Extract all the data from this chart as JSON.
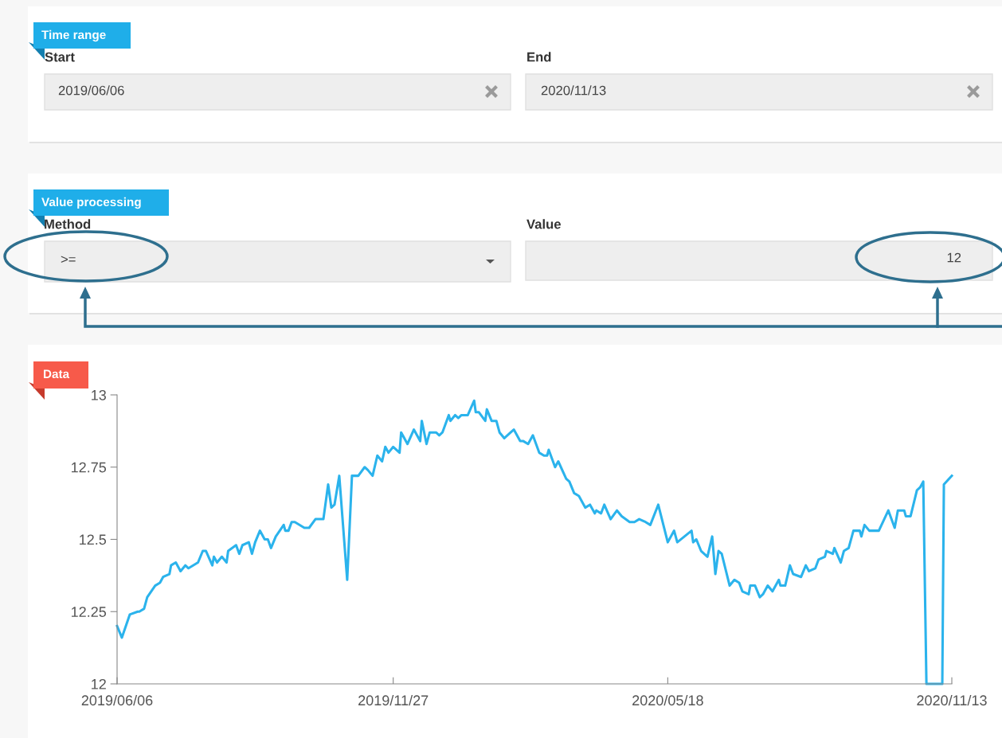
{
  "chart_data": {
    "type": "line",
    "title": "Data",
    "annotations": [
      "Time range",
      "Start",
      "2019/06/06",
      "End",
      "2020/11/13",
      "Value processing",
      "Method",
      ">=",
      "Value",
      "12"
    ],
    "x": [
      "2019-06-06",
      "2019-06-09",
      "2019-06-14",
      "2019-06-19",
      "2019-06-20",
      "2019-06-23",
      "2019-06-25",
      "2019-06-30",
      "2019-07-03",
      "2019-07-05",
      "2019-07-09",
      "2019-07-10",
      "2019-07-13",
      "2019-07-16",
      "2019-07-19",
      "2019-07-21",
      "2019-07-27",
      "2019-07-30",
      "2019-08-01",
      "2019-08-05",
      "2019-08-06",
      "2019-08-08",
      "2019-08-11",
      "2019-08-14",
      "2019-08-15",
      "2019-08-20",
      "2019-08-22",
      "2019-08-24",
      "2019-08-28",
      "2019-08-30",
      "2019-09-01",
      "2019-09-04",
      "2019-09-07",
      "2019-09-09",
      "2019-09-11",
      "2019-09-14",
      "2019-09-19",
      "2019-09-20",
      "2019-09-22",
      "2019-09-24",
      "2019-09-26",
      "2019-10-02",
      "2019-10-05",
      "2019-10-09",
      "2019-10-14",
      "2019-10-17",
      "2019-10-19",
      "2019-10-21",
      "2019-10-24",
      "2019-10-29",
      "2019-11-01",
      "2019-11-05",
      "2019-11-09",
      "2019-11-11",
      "2019-11-14",
      "2019-11-17",
      "2019-11-20",
      "2019-11-22",
      "2019-11-24",
      "2019-11-27",
      "2019-12-01",
      "2019-12-02",
      "2019-12-06",
      "2019-12-10",
      "2019-12-14",
      "2019-12-15",
      "2019-12-18",
      "2019-12-20",
      "2019-12-24",
      "2019-12-26",
      "2019-12-28",
      "2020-01-01",
      "2020-01-02",
      "2020-01-05",
      "2020-01-07",
      "2020-01-09",
      "2020-01-13",
      "2020-01-17",
      "2020-01-18",
      "2020-01-20",
      "2020-01-24",
      "2020-01-25",
      "2020-01-28",
      "2020-01-31",
      "2020-02-02",
      "2020-02-05",
      "2020-02-09",
      "2020-02-11",
      "2020-02-15",
      "2020-02-17",
      "2020-02-20",
      "2020-02-23",
      "2020-02-27",
      "2020-03-01",
      "2020-03-03",
      "2020-03-04",
      "2020-03-08",
      "2020-03-10",
      "2020-03-15",
      "2020-03-17",
      "2020-03-20",
      "2020-03-23",
      "2020-03-27",
      "2020-03-30",
      "2020-04-02",
      "2020-04-03",
      "2020-04-06",
      "2020-04-08",
      "2020-04-12",
      "2020-04-16",
      "2020-04-19",
      "2020-04-24",
      "2020-04-27",
      "2020-04-30",
      "2020-05-04",
      "2020-05-07",
      "2020-05-12",
      "2020-05-18",
      "2020-05-22",
      "2020-05-24",
      "2020-06-02",
      "2020-06-03",
      "2020-06-05",
      "2020-06-08",
      "2020-06-12",
      "2020-06-15",
      "2020-06-17",
      "2020-06-19",
      "2020-06-21",
      "2020-06-26",
      "2020-06-29",
      "2020-07-02",
      "2020-07-04",
      "2020-07-08",
      "2020-07-09",
      "2020-07-12",
      "2020-07-15",
      "2020-07-17",
      "2020-07-20",
      "2020-07-23",
      "2020-07-27",
      "2020-07-28",
      "2020-07-31",
      "2020-08-03",
      "2020-08-05",
      "2020-08-10",
      "2020-08-13",
      "2020-08-15",
      "2020-08-19",
      "2020-08-21",
      "2020-08-25",
      "2020-08-26",
      "2020-08-30",
      "2020-08-31",
      "2020-09-04",
      "2020-09-06",
      "2020-09-09",
      "2020-09-12",
      "2020-09-16",
      "2020-09-17",
      "2020-09-19",
      "2020-09-22",
      "2020-09-28",
      "2020-10-04",
      "2020-10-08",
      "2020-10-10",
      "2020-10-14",
      "2020-10-15",
      "2020-10-18",
      "2020-10-22",
      "2020-10-24",
      "2020-10-26",
      "2020-10-28",
      "2020-11-07",
      "2020-11-08",
      "2020-11-13"
    ],
    "series": [
      {
        "color": "#2bb3ec",
        "values": [
          12.2,
          12.16,
          12.24,
          12.25,
          12.25,
          12.26,
          12.3,
          12.34,
          12.35,
          12.37,
          12.38,
          12.41,
          12.42,
          12.39,
          12.41,
          12.4,
          12.42,
          12.46,
          12.46,
          12.41,
          12.44,
          12.42,
          12.44,
          12.42,
          12.46,
          12.48,
          12.45,
          12.48,
          12.49,
          12.45,
          12.49,
          12.53,
          12.5,
          12.5,
          12.47,
          12.51,
          12.55,
          12.53,
          12.53,
          12.56,
          12.56,
          12.54,
          12.54,
          12.57,
          12.57,
          12.69,
          12.61,
          12.62,
          12.72,
          12.36,
          12.72,
          12.72,
          12.75,
          12.74,
          12.72,
          12.79,
          12.77,
          12.82,
          12.8,
          12.82,
          12.8,
          12.87,
          12.83,
          12.88,
          12.84,
          12.91,
          12.83,
          12.87,
          12.87,
          12.86,
          12.87,
          12.93,
          12.91,
          12.93,
          12.92,
          12.93,
          12.93,
          12.98,
          12.94,
          12.94,
          12.91,
          12.95,
          12.91,
          12.91,
          12.87,
          12.85,
          12.87,
          12.88,
          12.84,
          12.84,
          12.83,
          12.86,
          12.8,
          12.79,
          12.79,
          12.81,
          12.75,
          12.77,
          12.71,
          12.7,
          12.66,
          12.65,
          12.61,
          12.62,
          12.59,
          12.6,
          12.59,
          12.62,
          12.57,
          12.6,
          12.58,
          12.56,
          12.56,
          12.57,
          12.56,
          12.55,
          12.62,
          12.49,
          12.53,
          12.49,
          12.53,
          12.49,
          12.5,
          12.46,
          12.44,
          12.51,
          12.38,
          12.46,
          12.45,
          12.34,
          12.36,
          12.35,
          12.32,
          12.31,
          12.34,
          12.34,
          12.3,
          12.31,
          12.34,
          12.32,
          12.36,
          12.34,
          12.34,
          12.41,
          12.38,
          12.37,
          12.41,
          12.39,
          12.4,
          12.43,
          12.44,
          12.46,
          12.45,
          12.47,
          12.42,
          12.46,
          12.47,
          12.53,
          12.53,
          12.51,
          12.55,
          12.53,
          12.53,
          12.6,
          12.54,
          12.6,
          12.6,
          12.58,
          12.58,
          12.67,
          12.68,
          12.7,
          12,
          12,
          12.69,
          12.72
        ]
      }
    ],
    "xlim": [
      "2019-06-06",
      "2020-11-13"
    ],
    "xticks": [
      {
        "value": "2019-06-06",
        "label": "2019/06/06"
      },
      {
        "value": "2019-11-27",
        "label": "2019/11/27"
      },
      {
        "value": "2020-05-18",
        "label": "2020/05/18"
      },
      {
        "value": "2020-11-13",
        "label": "2020/11/13"
      }
    ],
    "ylim": [
      12,
      13
    ],
    "yticks": [
      12,
      12.25,
      12.5,
      12.75,
      13
    ],
    "grid": false,
    "marker": "none",
    "line_style": "solid"
  }
}
